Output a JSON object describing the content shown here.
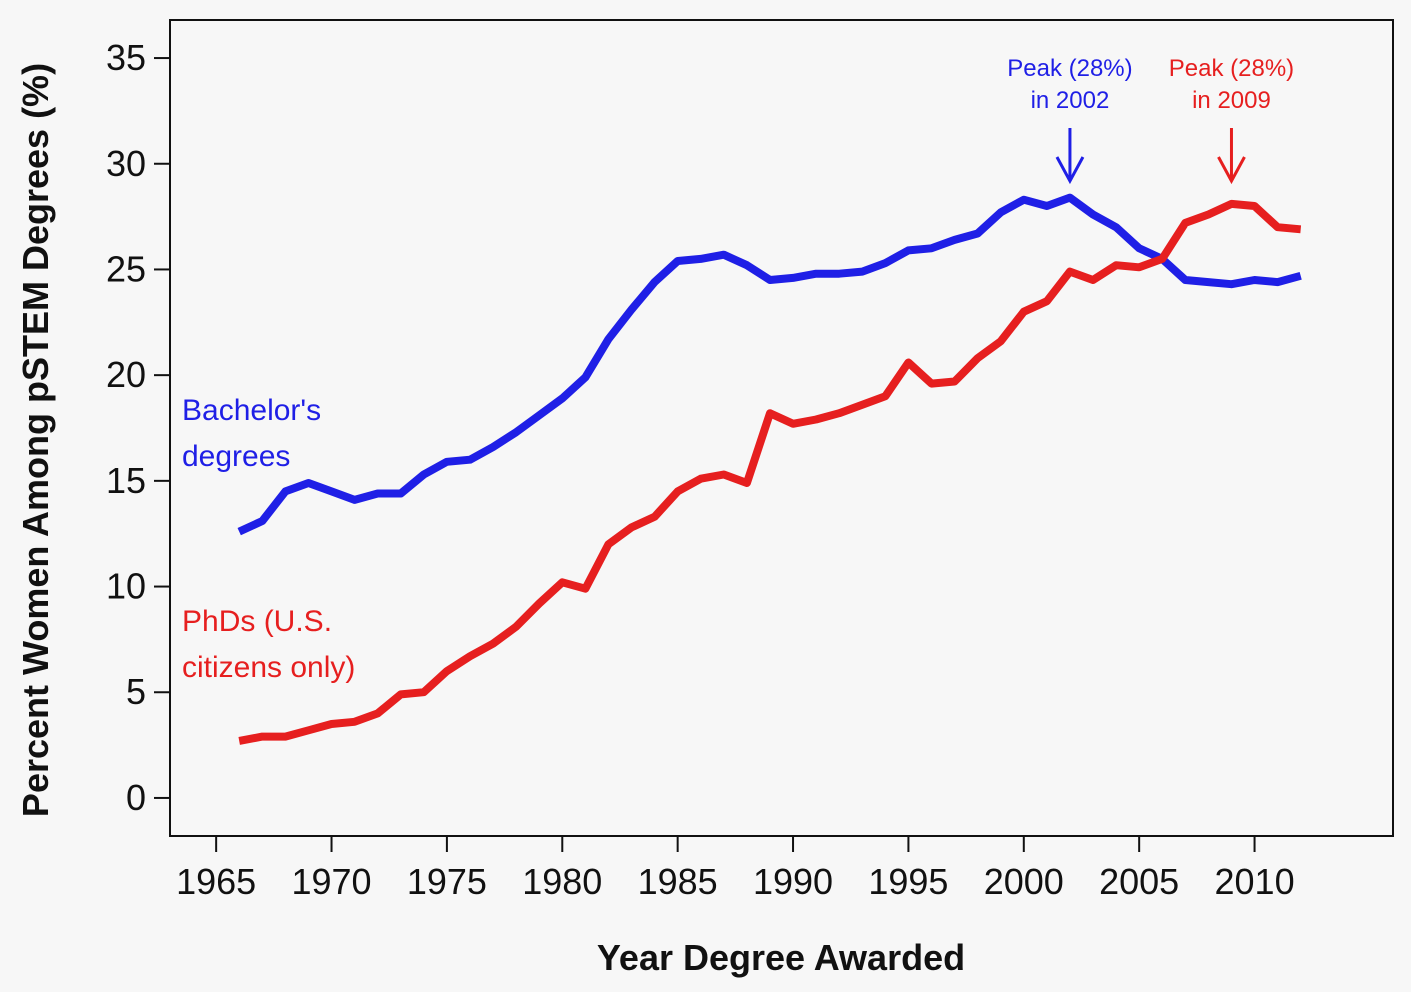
{
  "chart_data": {
    "type": "line",
    "xlabel": "Year Degree Awarded",
    "ylabel": "Percent Women Among pSTEM Degrees (%)",
    "xlim": [
      1963,
      2016
    ],
    "ylim": [
      -1.8,
      36.8
    ],
    "xticks": [
      1965,
      1970,
      1975,
      1980,
      1985,
      1990,
      1995,
      2000,
      2005,
      2010
    ],
    "yticks": [
      0,
      5,
      10,
      15,
      20,
      25,
      30,
      35
    ],
    "x": [
      1966,
      1967,
      1968,
      1969,
      1970,
      1971,
      1972,
      1973,
      1974,
      1975,
      1976,
      1977,
      1978,
      1979,
      1980,
      1981,
      1982,
      1983,
      1984,
      1985,
      1986,
      1987,
      1988,
      1989,
      1990,
      1991,
      1992,
      1993,
      1994,
      1995,
      1996,
      1997,
      1998,
      1999,
      2000,
      2001,
      2002,
      2003,
      2004,
      2005,
      2006,
      2007,
      2008,
      2009,
      2010,
      2011,
      2012
    ],
    "series": [
      {
        "name": "Bachelor's degrees",
        "label_lines": [
          "Bachelor's",
          "degrees"
        ],
        "color": "#1f1fe6",
        "values": [
          12.6,
          13.1,
          14.5,
          14.9,
          14.5,
          14.1,
          14.4,
          14.4,
          15.3,
          15.9,
          16.0,
          16.6,
          17.3,
          18.1,
          18.9,
          19.9,
          21.7,
          23.1,
          24.4,
          25.4,
          25.5,
          25.7,
          25.2,
          24.5,
          24.6,
          24.8,
          24.8,
          24.9,
          25.3,
          25.9,
          26.0,
          26.4,
          26.7,
          27.7,
          28.3,
          28.0,
          28.4,
          27.6,
          27.0,
          26.0,
          25.5,
          24.5,
          24.4,
          24.3,
          24.5,
          24.4,
          24.7
        ]
      },
      {
        "name": "PhDs (U.S. citizens only)",
        "label_lines": [
          "PhDs (U.S.",
          "citizens only)"
        ],
        "color": "#e61f1f",
        "values": [
          2.7,
          2.9,
          2.9,
          3.2,
          3.5,
          3.6,
          4.0,
          4.9,
          5.0,
          6.0,
          6.7,
          7.3,
          8.1,
          9.2,
          10.2,
          9.9,
          12.0,
          12.8,
          13.3,
          14.5,
          15.1,
          15.3,
          14.9,
          18.2,
          17.7,
          17.9,
          18.2,
          18.6,
          19.0,
          20.6,
          19.6,
          19.7,
          20.8,
          21.6,
          23.0,
          23.5,
          24.9,
          24.5,
          25.2,
          25.1,
          25.5,
          27.2,
          27.6,
          28.1,
          28.0,
          27.0,
          26.9
        ]
      }
    ],
    "annotations": [
      {
        "lines": [
          "Peak (28%)",
          "in 2002"
        ],
        "x": 2002,
        "y": 28.4,
        "color": "#1f1fe6"
      },
      {
        "lines": [
          "Peak (28%)",
          "in 2009"
        ],
        "x": 2009,
        "y": 28.1,
        "color": "#e61f1f"
      }
    ]
  }
}
